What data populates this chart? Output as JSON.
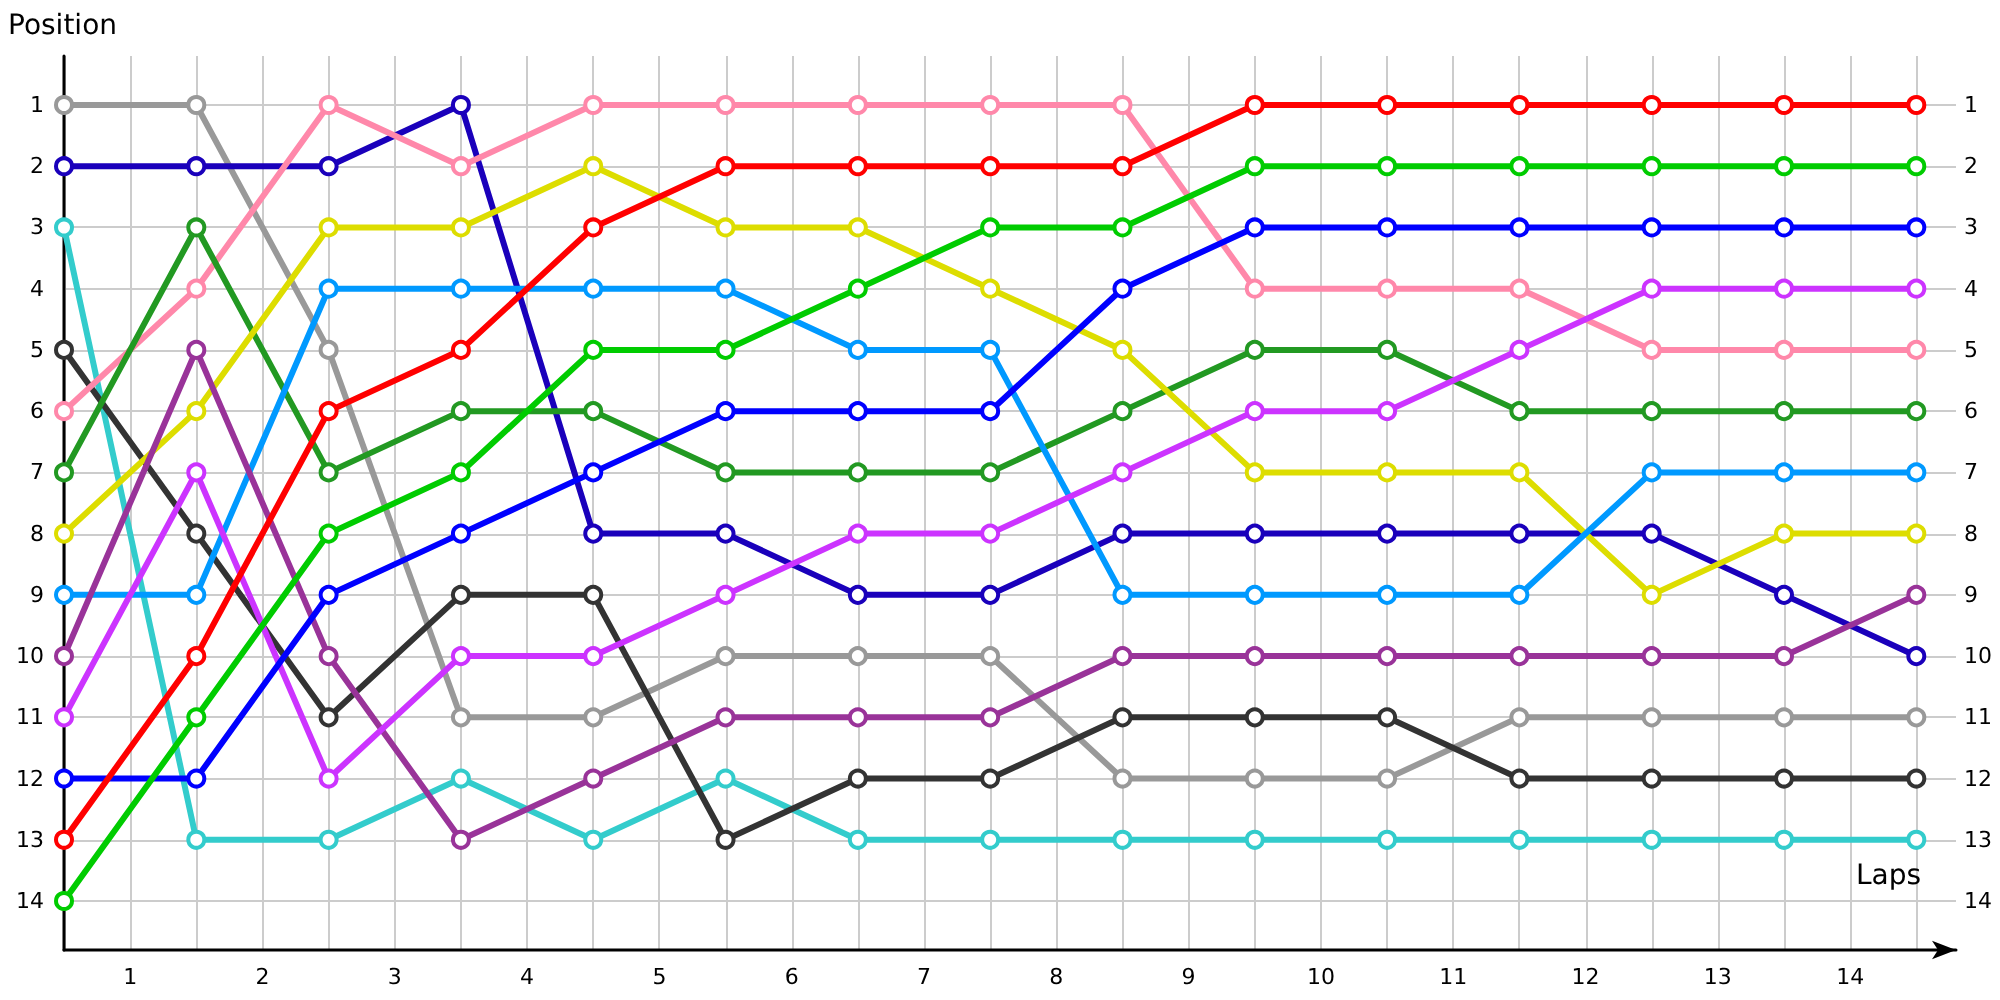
{
  "chart_data": {
    "type": "line",
    "xlabel": "Laps",
    "ylabel": "Position",
    "x": [
      0,
      1,
      2,
      3,
      4,
      5,
      6,
      7,
      8,
      9,
      10,
      11,
      12,
      13,
      14
    ],
    "xlim": [
      0,
      14.3
    ],
    "xticks": [
      {
        "value": 0,
        "label": null
      },
      {
        "value": 0.5,
        "label": "1"
      },
      {
        "value": 1,
        "label": null
      },
      {
        "value": 1.5,
        "label": "2"
      },
      {
        "value": 2,
        "label": null
      },
      {
        "value": 2.5,
        "label": "3"
      },
      {
        "value": 3,
        "label": null
      },
      {
        "value": 3.5,
        "label": "4"
      },
      {
        "value": 4,
        "label": null
      },
      {
        "value": 4.5,
        "label": "5"
      },
      {
        "value": 5,
        "label": null
      },
      {
        "value": 5.5,
        "label": "6"
      },
      {
        "value": 6,
        "label": null
      },
      {
        "value": 6.5,
        "label": "7"
      },
      {
        "value": 7,
        "label": null
      },
      {
        "value": 7.5,
        "label": "8"
      },
      {
        "value": 8,
        "label": null
      },
      {
        "value": 8.5,
        "label": "9"
      },
      {
        "value": 9,
        "label": null
      },
      {
        "value": 9.5,
        "label": "10"
      },
      {
        "value": 10,
        "label": null
      },
      {
        "value": 10.5,
        "label": "11"
      },
      {
        "value": 11,
        "label": null
      },
      {
        "value": 11.5,
        "label": "12"
      },
      {
        "value": 12,
        "label": null
      },
      {
        "value": 12.5,
        "label": "13"
      },
      {
        "value": 13,
        "label": null
      },
      {
        "value": 13.5,
        "label": "14"
      },
      {
        "value": 14,
        "label": null
      }
    ],
    "ylim": [
      14.8,
      0.2
    ],
    "yticks": [
      1,
      2,
      3,
      4,
      5,
      6,
      7,
      8,
      9,
      10,
      11,
      12,
      13,
      14
    ],
    "y2lim": [
      14.8,
      0.2
    ],
    "y2ticks": [
      1,
      2,
      3,
      4,
      5,
      6,
      7,
      8,
      9,
      10,
      11,
      12,
      13,
      14
    ],
    "grid": true,
    "marker": "circle",
    "line_style": "solid",
    "series": [
      {
        "color": "#999999",
        "values": [
          1,
          1,
          5,
          11,
          11,
          10,
          10,
          10,
          12,
          12,
          12,
          11,
          11,
          11,
          11
        ]
      },
      {
        "color": "#1a00bb",
        "values": [
          2,
          2,
          2,
          1,
          8,
          8,
          9,
          9,
          8,
          8,
          8,
          8,
          8,
          9,
          10
        ]
      },
      {
        "color": "#33cccc",
        "values": [
          3,
          13,
          13,
          12,
          13,
          12,
          13,
          13,
          13,
          13,
          13,
          13,
          13,
          13,
          13
        ]
      },
      {
        "color": "#333333",
        "values": [
          5,
          8,
          11,
          9,
          9,
          13,
          12,
          12,
          11,
          11,
          11,
          12,
          12,
          12,
          12
        ]
      },
      {
        "color": "#ff88aa",
        "values": [
          6,
          4,
          1,
          2,
          1,
          1,
          1,
          1,
          1,
          4,
          4,
          4,
          5,
          5,
          5
        ]
      },
      {
        "color": "#229922",
        "values": [
          7,
          3,
          7,
          6,
          6,
          7,
          7,
          7,
          6,
          5,
          5,
          6,
          6,
          6,
          6
        ]
      },
      {
        "color": "#dddd00",
        "values": [
          8,
          6,
          3,
          3,
          2,
          3,
          3,
          4,
          5,
          7,
          7,
          7,
          9,
          8,
          8
        ]
      },
      {
        "color": "#0099ff",
        "values": [
          9,
          9,
          4,
          4,
          4,
          4,
          5,
          5,
          9,
          9,
          9,
          9,
          7,
          7,
          7
        ]
      },
      {
        "color": "#993399",
        "values": [
          10,
          5,
          10,
          13,
          12,
          11,
          11,
          11,
          10,
          10,
          10,
          10,
          10,
          10,
          9
        ]
      },
      {
        "color": "#cc33ff",
        "values": [
          11,
          7,
          12,
          10,
          10,
          9,
          8,
          8,
          7,
          6,
          6,
          5,
          4,
          4,
          4
        ]
      },
      {
        "color": "#0000ff",
        "values": [
          12,
          12,
          9,
          8,
          7,
          6,
          6,
          6,
          4,
          3,
          3,
          3,
          3,
          3,
          3
        ]
      },
      {
        "color": "#ff0000",
        "values": [
          13,
          10,
          6,
          5,
          3,
          2,
          2,
          2,
          2,
          1,
          1,
          1,
          1,
          1,
          1
        ]
      },
      {
        "color": "#00cc00",
        "values": [
          14,
          11,
          8,
          7,
          5,
          5,
          4,
          3,
          3,
          2,
          2,
          2,
          2,
          2,
          2
        ]
      }
    ]
  }
}
